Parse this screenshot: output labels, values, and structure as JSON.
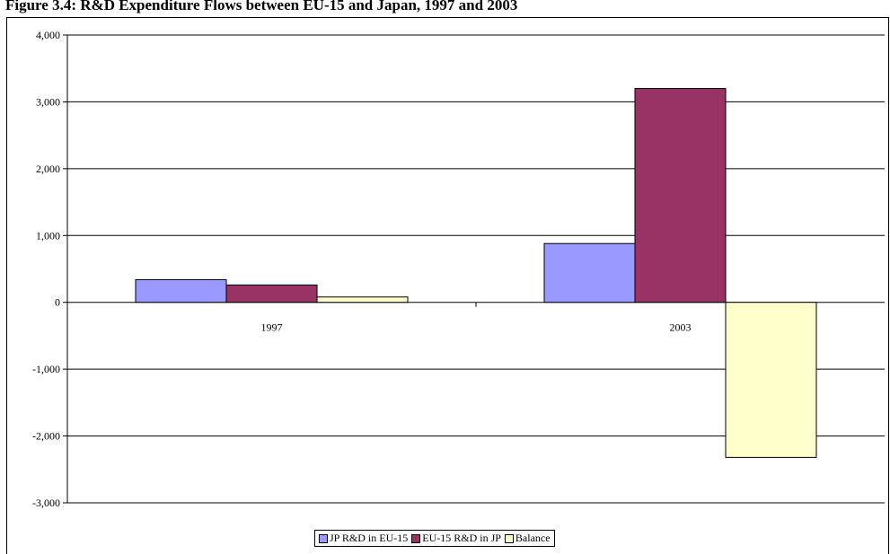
{
  "title": "Figure 3.4: R&D Expenditure Flows between EU-15 and Japan, 1997 and 2003",
  "chart_data": {
    "type": "bar",
    "title": "Figure 3.4: R&D Expenditure Flows between EU-15 and Japan, 1997 and 2003",
    "xlabel": "",
    "ylabel": "",
    "categories": [
      "1997",
      "2003"
    ],
    "ylim": [
      -3000,
      4000
    ],
    "yticks": [
      4000,
      3000,
      2000,
      1000,
      0,
      -1000,
      -2000,
      -3000
    ],
    "ytick_labels": [
      "4,000",
      "3,000",
      "2,000",
      "1,000",
      "0",
      "-1,000",
      "-2,000",
      "-3,000"
    ],
    "grid": true,
    "legend_position": "bottom",
    "series": [
      {
        "name": "JP R&D in EU-15",
        "color": "#9999ff",
        "values": [
          340,
          880
        ]
      },
      {
        "name": "EU-15 R&D in JP",
        "color": "#993366",
        "values": [
          260,
          3200
        ]
      },
      {
        "name": "Balance",
        "color": "#ffffcc",
        "values": [
          80,
          -2320
        ]
      }
    ]
  }
}
